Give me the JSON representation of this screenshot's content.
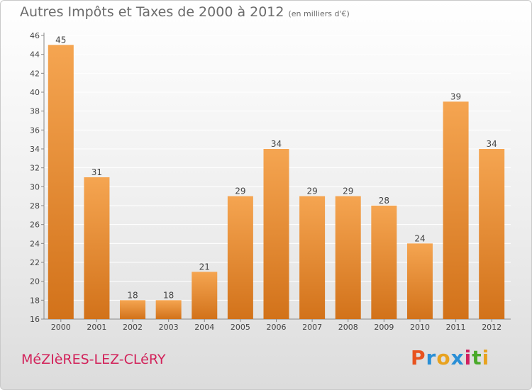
{
  "title": "Autres Impôts et Taxes de 2000 à 2012",
  "subtitle": "(en milliers d'€)",
  "town": "MéZIèRES-LEZ-CLéRY",
  "brand": {
    "text": "Proxiti",
    "letter_colors": [
      "#e8531f",
      "#2a8fd6",
      "#e8a21f",
      "#2a8fd6",
      "#d02060",
      "#4aaa2a",
      "#e8a21f"
    ]
  },
  "colors": {
    "bar_top": "#f5a551",
    "bar_bottom": "#d2721a",
    "axis": "#888888",
    "grid": "#ffffff",
    "text": "#444444"
  },
  "chart_data": {
    "type": "bar",
    "title": "Autres Impôts et Taxes de 2000 à 2012",
    "subtitle": "(en milliers d'€)",
    "categories": [
      "2000",
      "2001",
      "2002",
      "2003",
      "2004",
      "2005",
      "2006",
      "2007",
      "2008",
      "2009",
      "2010",
      "2011",
      "2012"
    ],
    "values": [
      45,
      31,
      18,
      18,
      21,
      29,
      34,
      29,
      29,
      28,
      24,
      39,
      34
    ],
    "ylim": [
      16,
      46
    ],
    "yticks": [
      16,
      18,
      20,
      22,
      24,
      26,
      28,
      30,
      32,
      34,
      36,
      38,
      40,
      42,
      44,
      46
    ],
    "grid": true,
    "data_labels": true
  }
}
